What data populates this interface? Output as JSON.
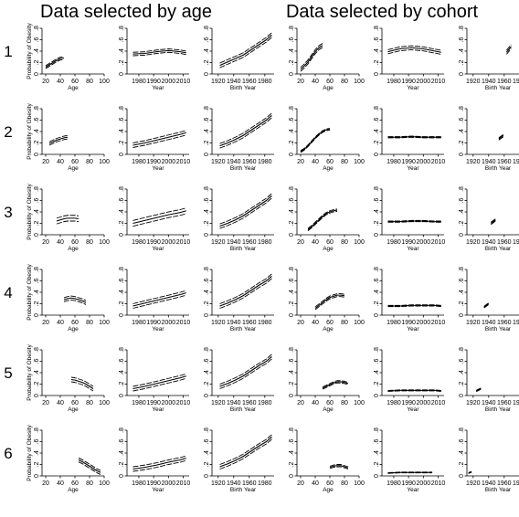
{
  "headers": [
    "Data selected by age",
    "Data selected by cohort"
  ],
  "row_labels": [
    "1",
    "2",
    "3",
    "4",
    "5",
    "6"
  ],
  "chart_data": {
    "type": "line",
    "rows": 6,
    "columns": 6,
    "y_axis_label": "Probability of Obesity",
    "ylim": [
      0,
      0.8
    ],
    "y_ticks": [
      "0",
      ".2",
      ".4",
      ".6",
      ".8"
    ],
    "y_tick_values": [
      0,
      0.2,
      0.4,
      0.6,
      0.8
    ],
    "axes": [
      {
        "xlabel": "Age",
        "xlim": [
          15,
          100
        ],
        "x_tick_values": [
          20,
          40,
          60,
          80,
          100
        ],
        "x_ticks": [
          "20",
          "40",
          "60",
          "80",
          "100"
        ]
      },
      {
        "xlabel": "Year",
        "xlim": [
          1972,
          2014
        ],
        "x_tick_values": [
          1980,
          1990,
          2000,
          2010
        ],
        "x_ticks": [
          "1980",
          "1990",
          "2000",
          "2010"
        ]
      },
      {
        "xlabel": "Birth Year",
        "xlim": [
          1912,
          1992
        ],
        "x_tick_values": [
          1920,
          1940,
          1960,
          1980
        ],
        "x_ticks": [
          "1920",
          "1940",
          "1960",
          "1980"
        ]
      },
      {
        "xlabel": "Age",
        "xlim": [
          15,
          100
        ],
        "x_tick_values": [
          20,
          40,
          60,
          80,
          100
        ],
        "x_ticks": [
          "20",
          "40",
          "60",
          "80",
          "100"
        ]
      },
      {
        "xlabel": "Year",
        "xlim": [
          1972,
          2014
        ],
        "x_tick_values": [
          1980,
          1990,
          2000,
          2010
        ],
        "x_ticks": [
          "1980",
          "1990",
          "2000",
          "2010"
        ]
      },
      {
        "xlabel": "Birth Year",
        "xlim": [
          1912,
          1992
        ],
        "x_tick_values": [
          1920,
          1940,
          1960,
          1980
        ],
        "x_ticks": [
          "1920",
          "1940",
          "1960",
          "1980"
        ]
      }
    ],
    "panels": [
      [
        {
          "x": [
            20,
            25,
            30,
            35,
            40,
            45
          ],
          "y": [
            0.12,
            0.16,
            0.2,
            0.24,
            0.27,
            0.28
          ],
          "band": 0.025
        },
        {
          "x": [
            1976,
            1984,
            1992,
            2000,
            2008,
            2012
          ],
          "y": [
            0.35,
            0.36,
            0.39,
            0.41,
            0.39,
            0.37
          ],
          "band": 0.03
        },
        {
          "x": [
            1922,
            1932,
            1942,
            1952,
            1962,
            1972,
            1982,
            1987,
            1989
          ],
          "y": [
            0.15,
            0.21,
            0.27,
            0.33,
            0.42,
            0.51,
            0.6,
            0.66,
            0.68
          ],
          "band": 0.04
        },
        {
          "x": [
            20,
            25,
            30,
            35,
            40,
            45,
            50
          ],
          "y": [
            0.08,
            0.14,
            0.21,
            0.3,
            0.39,
            0.46,
            0.5
          ],
          "band": 0.035
        },
        {
          "x": [
            1976,
            1984,
            1992,
            2000,
            2008,
            2012
          ],
          "y": [
            0.39,
            0.44,
            0.46,
            0.44,
            0.4,
            0.38
          ],
          "band": 0.035
        },
        {
          "x": [
            1963,
            1966,
            1969
          ],
          "y": [
            0.38,
            0.43,
            0.48
          ],
          "band": 0.035
        }
      ],
      [
        {
          "x": [
            25,
            30,
            35,
            40,
            45,
            50
          ],
          "y": [
            0.19,
            0.22,
            0.25,
            0.27,
            0.29,
            0.3
          ],
          "band": 0.03
        },
        {
          "x": [
            1976,
            1984,
            1992,
            2000,
            2008,
            2012
          ],
          "y": [
            0.16,
            0.2,
            0.25,
            0.3,
            0.35,
            0.38
          ],
          "band": 0.04
        },
        {
          "x": [
            1922,
            1932,
            1942,
            1952,
            1962,
            1972,
            1982,
            1987,
            1989
          ],
          "y": [
            0.15,
            0.2,
            0.26,
            0.33,
            0.42,
            0.51,
            0.6,
            0.66,
            0.68
          ],
          "band": 0.04
        },
        {
          "x": [
            20,
            25,
            30,
            35,
            40,
            45,
            50,
            55,
            60
          ],
          "y": [
            0.05,
            0.09,
            0.15,
            0.22,
            0.29,
            0.35,
            0.4,
            0.43,
            0.44
          ],
          "band": 0.015
        },
        {
          "x": [
            1976,
            1984,
            1992,
            2000,
            2008,
            2012
          ],
          "y": [
            0.3,
            0.3,
            0.31,
            0.3,
            0.3,
            0.3
          ],
          "band": 0.01
        },
        {
          "x": [
            1953,
            1956,
            1959
          ],
          "y": [
            0.27,
            0.3,
            0.33
          ],
          "band": 0.02
        }
      ],
      [
        {
          "x": [
            35,
            40,
            45,
            50,
            55,
            60,
            65
          ],
          "y": [
            0.24,
            0.26,
            0.28,
            0.29,
            0.29,
            0.29,
            0.28
          ],
          "band": 0.05
        },
        {
          "x": [
            1976,
            1984,
            1992,
            2000,
            2008,
            2012
          ],
          "y": [
            0.2,
            0.25,
            0.3,
            0.35,
            0.39,
            0.42
          ],
          "band": 0.05
        },
        {
          "x": [
            1922,
            1932,
            1942,
            1952,
            1962,
            1972,
            1982,
            1987,
            1989
          ],
          "y": [
            0.15,
            0.2,
            0.26,
            0.33,
            0.42,
            0.51,
            0.6,
            0.66,
            0.68
          ],
          "band": 0.04
        },
        {
          "x": [
            30,
            35,
            40,
            45,
            50,
            55,
            60,
            65,
            70
          ],
          "y": [
            0.09,
            0.14,
            0.2,
            0.26,
            0.32,
            0.37,
            0.4,
            0.42,
            0.43
          ],
          "band": 0.02
        },
        {
          "x": [
            1976,
            1984,
            1992,
            2000,
            2008,
            2012
          ],
          "y": [
            0.23,
            0.23,
            0.24,
            0.24,
            0.23,
            0.23
          ],
          "band": 0.01
        },
        {
          "x": [
            1943,
            1946,
            1949
          ],
          "y": [
            0.2,
            0.23,
            0.26
          ],
          "band": 0.02
        }
      ],
      [
        {
          "x": [
            45,
            50,
            55,
            60,
            65,
            70,
            75
          ],
          "y": [
            0.27,
            0.29,
            0.3,
            0.29,
            0.27,
            0.25,
            0.22
          ],
          "band": 0.035
        },
        {
          "x": [
            1976,
            1984,
            1992,
            2000,
            2008,
            2012
          ],
          "y": [
            0.16,
            0.21,
            0.26,
            0.31,
            0.36,
            0.39
          ],
          "band": 0.04
        },
        {
          "x": [
            1922,
            1932,
            1942,
            1952,
            1962,
            1972,
            1982,
            1987,
            1989
          ],
          "y": [
            0.16,
            0.21,
            0.27,
            0.34,
            0.43,
            0.52,
            0.6,
            0.66,
            0.68
          ],
          "band": 0.04
        },
        {
          "x": [
            40,
            45,
            50,
            55,
            60,
            65,
            70,
            75,
            80
          ],
          "y": [
            0.12,
            0.17,
            0.22,
            0.27,
            0.31,
            0.33,
            0.35,
            0.35,
            0.34
          ],
          "band": 0.025
        },
        {
          "x": [
            1976,
            1984,
            1992,
            2000,
            2008,
            2012
          ],
          "y": [
            0.16,
            0.16,
            0.17,
            0.17,
            0.17,
            0.16
          ],
          "band": 0.01
        },
        {
          "x": [
            1934,
            1937,
            1940
          ],
          "y": [
            0.14,
            0.17,
            0.2
          ],
          "band": 0.015
        }
      ],
      [
        {
          "x": [
            55,
            60,
            65,
            70,
            75,
            80,
            85
          ],
          "y": [
            0.28,
            0.27,
            0.25,
            0.23,
            0.2,
            0.16,
            0.12
          ],
          "band": 0.04
        },
        {
          "x": [
            1976,
            1984,
            1992,
            2000,
            2008,
            2012
          ],
          "y": [
            0.12,
            0.16,
            0.21,
            0.26,
            0.31,
            0.34
          ],
          "band": 0.04
        },
        {
          "x": [
            1922,
            1932,
            1942,
            1952,
            1962,
            1972,
            1982,
            1987,
            1989
          ],
          "y": [
            0.16,
            0.21,
            0.27,
            0.34,
            0.43,
            0.52,
            0.6,
            0.66,
            0.68
          ],
          "band": 0.04
        },
        {
          "x": [
            50,
            55,
            60,
            65,
            70,
            75,
            80,
            85
          ],
          "y": [
            0.13,
            0.16,
            0.19,
            0.22,
            0.24,
            0.24,
            0.23,
            0.21
          ],
          "band": 0.02
        },
        {
          "x": [
            1976,
            1984,
            1992,
            2000,
            2008,
            2012
          ],
          "y": [
            0.08,
            0.09,
            0.09,
            0.09,
            0.09,
            0.08
          ],
          "band": 0.008
        },
        {
          "x": [
            1924,
            1927,
            1930
          ],
          "y": [
            0.08,
            0.1,
            0.12
          ],
          "band": 0.012
        }
      ],
      [
        {
          "x": [
            65,
            70,
            75,
            80,
            85,
            90,
            95
          ],
          "y": [
            0.28,
            0.25,
            0.21,
            0.17,
            0.13,
            0.09,
            0.06
          ],
          "band": 0.035
        },
        {
          "x": [
            1976,
            1984,
            1992,
            2000,
            2008,
            2012
          ],
          "y": [
            0.12,
            0.15,
            0.19,
            0.24,
            0.28,
            0.31
          ],
          "band": 0.04
        },
        {
          "x": [
            1922,
            1932,
            1942,
            1952,
            1962,
            1972,
            1982,
            1987,
            1989
          ],
          "y": [
            0.16,
            0.21,
            0.27,
            0.34,
            0.43,
            0.52,
            0.6,
            0.66,
            0.68
          ],
          "band": 0.04
        },
        {
          "x": [
            60,
            65,
            70,
            75,
            80,
            85
          ],
          "y": [
            0.15,
            0.17,
            0.18,
            0.18,
            0.16,
            0.14
          ],
          "band": 0.02
        },
        {
          "x": [
            1976,
            1984,
            1992,
            2000,
            2006
          ],
          "y": [
            0.05,
            0.06,
            0.06,
            0.06,
            0.06
          ],
          "band": 0.006
        },
        {
          "x": [
            1914,
            1916,
            1918
          ],
          "y": [
            0.05,
            0.06,
            0.07
          ],
          "band": 0.008
        }
      ]
    ]
  }
}
